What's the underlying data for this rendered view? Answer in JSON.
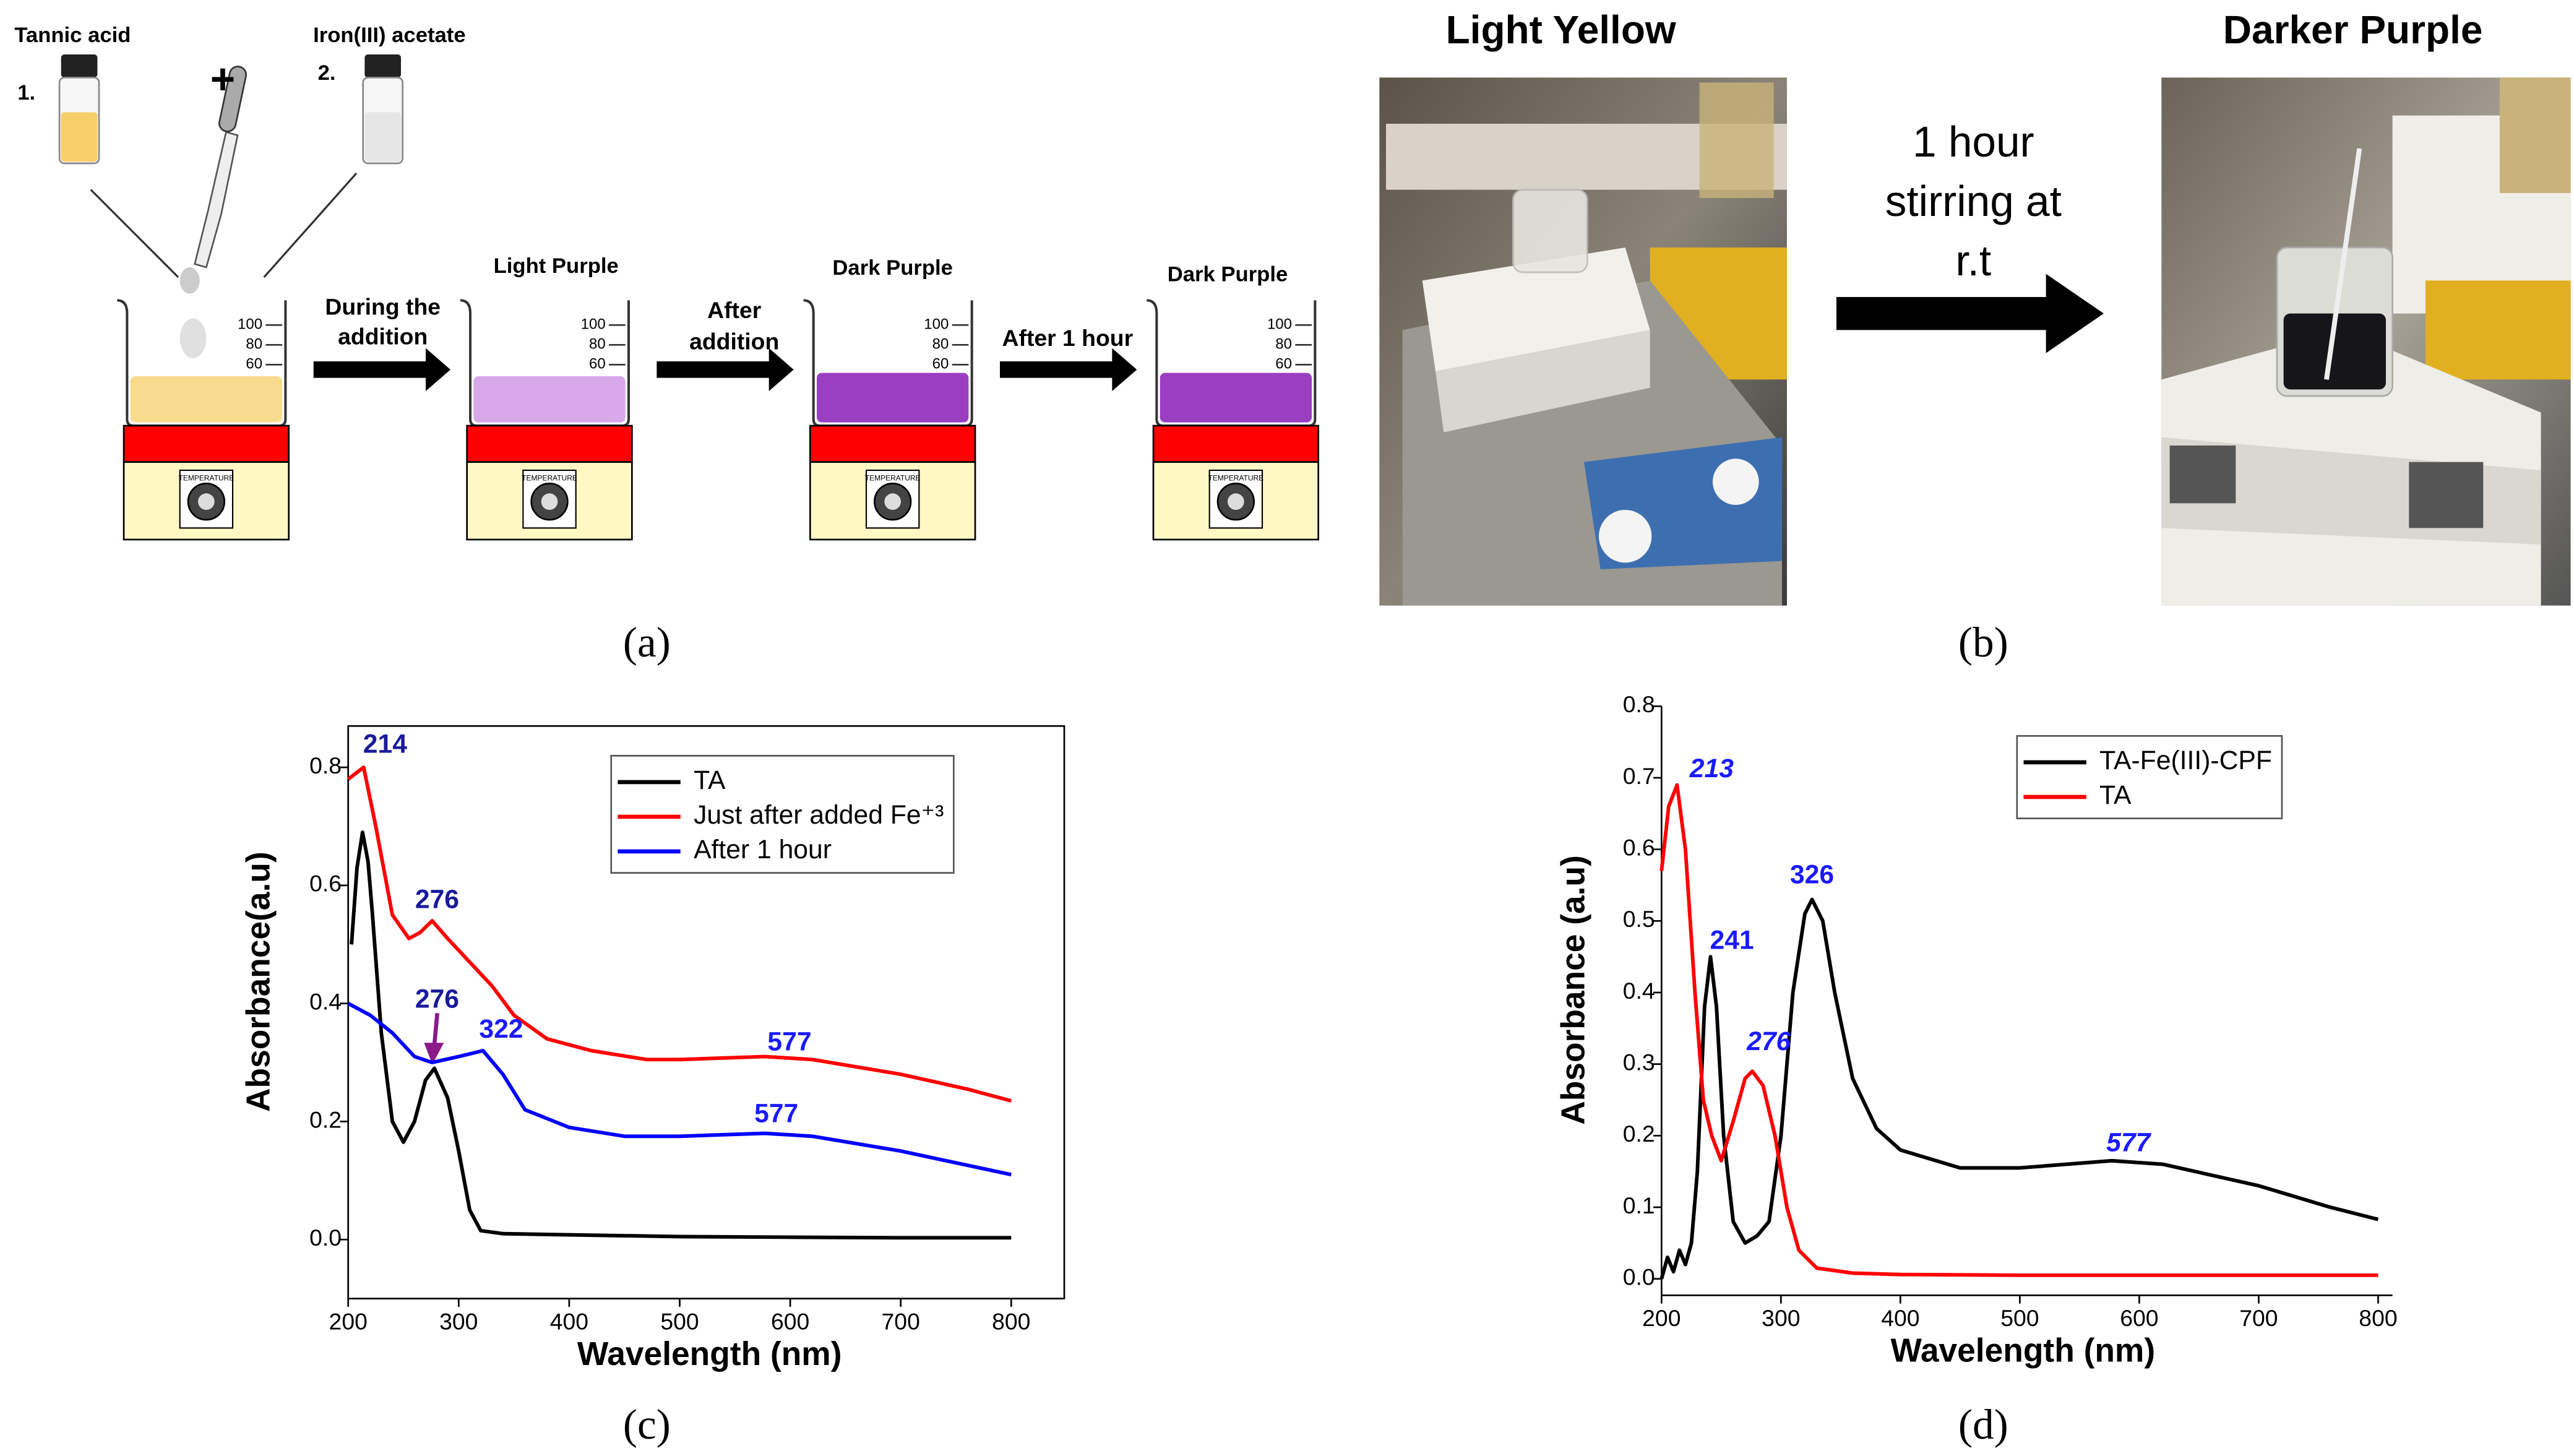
{
  "panel_a": {
    "vial_1_name": "Tannic acid",
    "vial_1_number": "1.",
    "plus": "+",
    "vial_2_name": "Iron(III) acetate",
    "vial_2_number": "2.",
    "step_1": [
      "During the",
      "addition"
    ],
    "stage_1": "Light Purple",
    "step_2": [
      "After",
      "addition"
    ],
    "stage_2": "Dark Purple",
    "step_3": "After 1 hour",
    "stage_3": "Dark Purple",
    "beaker_scale": [
      "100",
      "80",
      "60"
    ],
    "dial_label": "TEMPERATURE",
    "label": "(a)"
  },
  "panel_b": {
    "before": "Light Yellow",
    "step": [
      "1 hour",
      "stirring at",
      "r.t"
    ],
    "after": "Darker Purple",
    "label": "(b)"
  },
  "chart_data": [
    {
      "type": "line",
      "panel_label": "(c)",
      "x_label": "Wavelength (nm)",
      "y_label": "Absorbance(a.u)",
      "xlim": [
        200,
        848
      ],
      "ylim": [
        -0.1,
        0.87
      ],
      "xticks": [
        200,
        300,
        400,
        500,
        600,
        700,
        800
      ],
      "yticks": [
        {
          "value": 0,
          "label": "0.0"
        },
        0.2,
        0.4,
        0.6,
        0.8
      ],
      "frame": true,
      "legend_loc": "upper right",
      "series": [
        {
          "name": "TA",
          "color": "#000000",
          "x": [
            203,
            208,
            213,
            218,
            222,
            230,
            240,
            250,
            260,
            270,
            278,
            290,
            300,
            310,
            320,
            340,
            400,
            500,
            600,
            700,
            800
          ],
          "values": [
            0.5,
            0.63,
            0.69,
            0.64,
            0.55,
            0.35,
            0.2,
            0.165,
            0.2,
            0.27,
            0.29,
            0.24,
            0.15,
            0.05,
            0.015,
            0.01,
            0.008,
            0.005,
            0.004,
            0.003,
            0.003
          ]
        },
        {
          "name": "Just after added Fe⁺³",
          "color": "#ff0000",
          "x": [
            200,
            207,
            214,
            225,
            240,
            255,
            265,
            276,
            290,
            310,
            330,
            350,
            380,
            420,
            470,
            500,
            577,
            620,
            700,
            760,
            800
          ],
          "values": [
            0.78,
            0.79,
            0.8,
            0.7,
            0.55,
            0.51,
            0.52,
            0.54,
            0.51,
            0.47,
            0.43,
            0.38,
            0.34,
            0.32,
            0.305,
            0.305,
            0.31,
            0.305,
            0.28,
            0.255,
            0.235
          ]
        },
        {
          "name": "After 1 hour",
          "color": "#0000ff",
          "x": [
            200,
            220,
            240,
            260,
            276,
            300,
            322,
            340,
            360,
            400,
            450,
            500,
            577,
            620,
            700,
            800
          ],
          "values": [
            0.4,
            0.38,
            0.35,
            0.31,
            0.3,
            0.31,
            0.32,
            0.28,
            0.22,
            0.19,
            0.175,
            0.175,
            0.18,
            0.175,
            0.15,
            0.11
          ]
        }
      ],
      "annotations": [
        {
          "label": "214",
          "x": 214,
          "y": 0.8,
          "color": "#1a1a9c",
          "italic": false
        },
        {
          "label": "276",
          "x": 276,
          "y": 0.54,
          "color": "#1a1a9c",
          "italic": false
        },
        {
          "label": "276",
          "x": 276,
          "y": 0.29,
          "color": "#1a1a9c",
          "italic": false
        },
        {
          "label": "322",
          "x": 322,
          "y": 0.32,
          "color": "#1a1aff",
          "italic": false
        },
        {
          "label": "577",
          "x": 577,
          "y": 0.31,
          "color": "#1a1aff",
          "italic": false
        },
        {
          "label": "577",
          "x": 577,
          "y": 0.18,
          "color": "#1a1aff",
          "italic": false
        }
      ]
    },
    {
      "type": "line",
      "panel_label": "(d)",
      "x_label": "Wavelength (nm)",
      "y_label": "Absorbance (a.u)",
      "xlim": [
        200,
        812
      ],
      "ylim": [
        -0.023,
        0.8
      ],
      "xticks": [
        200,
        300,
        400,
        500,
        600,
        700,
        800
      ],
      "yticks": [
        {
          "value": 0,
          "label": "0.0"
        },
        0.1,
        0.2,
        0.3,
        0.4,
        0.5,
        0.6,
        0.7,
        0.8
      ],
      "frame": false,
      "legend_loc": "upper right",
      "series": [
        {
          "name": "TA-Fe(III)-CPF",
          "color": "#000000",
          "x": [
            200,
            205,
            210,
            215,
            220,
            225,
            230,
            236,
            241,
            246,
            252,
            260,
            270,
            280,
            290,
            300,
            310,
            320,
            326,
            335,
            345,
            360,
            380,
            400,
            450,
            500,
            577,
            620,
            700,
            760,
            800
          ],
          "values": [
            0.0,
            0.03,
            0.01,
            0.04,
            0.02,
            0.05,
            0.15,
            0.38,
            0.45,
            0.38,
            0.2,
            0.08,
            0.05,
            0.06,
            0.08,
            0.2,
            0.4,
            0.51,
            0.53,
            0.5,
            0.4,
            0.28,
            0.21,
            0.18,
            0.155,
            0.155,
            0.165,
            0.16,
            0.13,
            0.1,
            0.083
          ]
        },
        {
          "name": "TA",
          "color": "#ff0000",
          "x": [
            200,
            206,
            213,
            220,
            228,
            235,
            242,
            250,
            260,
            270,
            276,
            285,
            295,
            305,
            315,
            330,
            360,
            400,
            500,
            800
          ],
          "values": [
            0.57,
            0.66,
            0.69,
            0.6,
            0.4,
            0.25,
            0.2,
            0.165,
            0.22,
            0.28,
            0.29,
            0.27,
            0.2,
            0.1,
            0.04,
            0.015,
            0.008,
            0.006,
            0.005,
            0.005
          ]
        }
      ],
      "annotations": [
        {
          "label": "213",
          "x": 213,
          "y": 0.69,
          "color": "#1a1aff",
          "italic": true
        },
        {
          "label": "241",
          "x": 241,
          "y": 0.45,
          "color": "#1a1aff",
          "italic": false
        },
        {
          "label": "276",
          "x": 276,
          "y": 0.29,
          "color": "#1a1aff",
          "italic": true
        },
        {
          "label": "326",
          "x": 326,
          "y": 0.53,
          "color": "#1a1aff",
          "italic": false
        },
        {
          "label": "577",
          "x": 577,
          "y": 0.165,
          "color": "#1a1aff",
          "italic": true
        }
      ]
    }
  ]
}
